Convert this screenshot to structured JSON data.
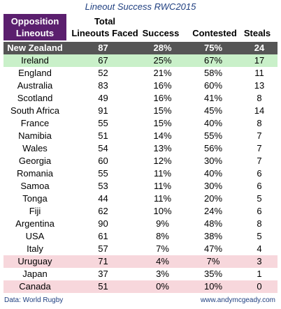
{
  "title": "Lineout Success RWC2015",
  "headers": {
    "opposition_line1": "Opposition",
    "opposition_line2": "Lineouts",
    "faced_line1": "Total",
    "faced_line2": "Lineouts Faced",
    "success": "Success",
    "contested": "Contested",
    "steals": "Steals"
  },
  "colors": {
    "header_bg": "#5b1f6e",
    "nz_row": "#555555",
    "highlight_green": "#c9f0c9",
    "highlight_pink": "#f7d7dc",
    "title_text": "#1f3f80"
  },
  "chart_data": {
    "type": "table",
    "title": "Lineout Success RWC2015",
    "columns": [
      "Opposition Lineouts",
      "Total Lineouts Faced",
      "Success",
      "Contested",
      "Steals"
    ],
    "rows": [
      {
        "team": "New Zealand",
        "faced": "87",
        "success": "28%",
        "contested": "75%",
        "steals": "24",
        "style": "nz"
      },
      {
        "team": "Ireland",
        "faced": "67",
        "success": "25%",
        "contested": "67%",
        "steals": "17",
        "style": "green"
      },
      {
        "team": "England",
        "faced": "52",
        "success": "21%",
        "contested": "58%",
        "steals": "11",
        "style": ""
      },
      {
        "team": "Australia",
        "faced": "83",
        "success": "16%",
        "contested": "60%",
        "steals": "13",
        "style": ""
      },
      {
        "team": "Scotland",
        "faced": "49",
        "success": "16%",
        "contested": "41%",
        "steals": "8",
        "style": ""
      },
      {
        "team": "South Africa",
        "faced": "91",
        "success": "15%",
        "contested": "45%",
        "steals": "14",
        "style": ""
      },
      {
        "team": "France",
        "faced": "55",
        "success": "15%",
        "contested": "40%",
        "steals": "8",
        "style": ""
      },
      {
        "team": "Namibia",
        "faced": "51",
        "success": "14%",
        "contested": "55%",
        "steals": "7",
        "style": ""
      },
      {
        "team": "Wales",
        "faced": "54",
        "success": "13%",
        "contested": "56%",
        "steals": "7",
        "style": ""
      },
      {
        "team": "Georgia",
        "faced": "60",
        "success": "12%",
        "contested": "30%",
        "steals": "7",
        "style": ""
      },
      {
        "team": "Romania",
        "faced": "55",
        "success": "11%",
        "contested": "40%",
        "steals": "6",
        "style": ""
      },
      {
        "team": "Samoa",
        "faced": "53",
        "success": "11%",
        "contested": "30%",
        "steals": "6",
        "style": ""
      },
      {
        "team": "Tonga",
        "faced": "44",
        "success": "11%",
        "contested": "20%",
        "steals": "5",
        "style": ""
      },
      {
        "team": "Fiji",
        "faced": "62",
        "success": "10%",
        "contested": "24%",
        "steals": "6",
        "style": ""
      },
      {
        "team": "Argentina",
        "faced": "90",
        "success": "9%",
        "contested": "48%",
        "steals": "8",
        "style": ""
      },
      {
        "team": "USA",
        "faced": "61",
        "success": "8%",
        "contested": "38%",
        "steals": "5",
        "style": ""
      },
      {
        "team": "Italy",
        "faced": "57",
        "success": "7%",
        "contested": "47%",
        "steals": "4",
        "style": ""
      },
      {
        "team": "Uruguay",
        "faced": "71",
        "success": "4%",
        "contested": "7%",
        "steals": "3",
        "style": "pink"
      },
      {
        "team": "Japan",
        "faced": "37",
        "success": "3%",
        "contested": "35%",
        "steals": "1",
        "style": ""
      },
      {
        "team": "Canada",
        "faced": "51",
        "success": "0%",
        "contested": "10%",
        "steals": "0",
        "style": "pink"
      }
    ]
  },
  "footer": {
    "source": "Data: World Rugby",
    "site": "www.andymcgeady.com"
  }
}
